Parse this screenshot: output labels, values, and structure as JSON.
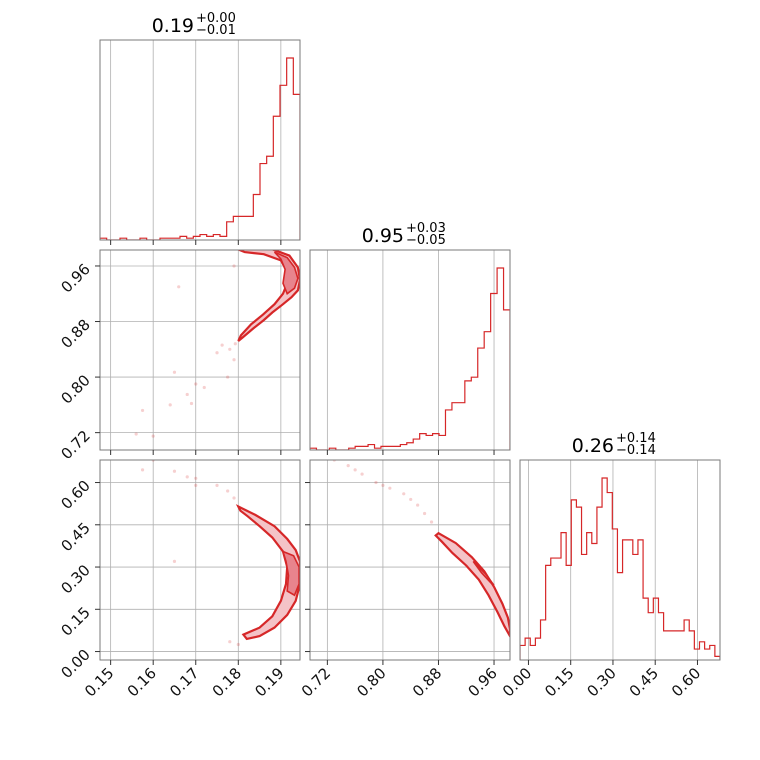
{
  "chart_data": {
    "type": "corner",
    "color": "#d62728",
    "parameters": [
      {
        "title": {
          "median": "0.19",
          "plus": "+0.00",
          "minus": "−0.01"
        },
        "range": [
          0.1475,
          0.1945
        ],
        "ticks": [
          0.15,
          0.16,
          0.17,
          0.18,
          0.19
        ],
        "tick_labels": [
          "0.15",
          "0.16",
          "0.17",
          "0.18",
          "0.19"
        ],
        "hist": [
          1,
          0,
          0,
          1,
          0,
          0,
          1,
          0,
          0,
          1,
          1,
          1,
          2,
          1,
          2,
          3,
          2,
          3,
          2,
          10,
          13,
          13,
          13,
          25,
          42,
          46,
          68,
          85,
          100,
          80
        ]
      },
      {
        "title": {
          "median": "0.95",
          "plus": "+0.03",
          "minus": "−0.05"
        },
        "range": [
          0.695,
          0.983
        ],
        "ticks": [
          0.72,
          0.8,
          0.88,
          0.96
        ],
        "tick_labels": [
          "0.72",
          "0.80",
          "0.88",
          "0.96"
        ],
        "hist": [
          1,
          0,
          0,
          1,
          0,
          0,
          1,
          2,
          2,
          3,
          1,
          2,
          2,
          2,
          3,
          4,
          6,
          9,
          8,
          9,
          8,
          22,
          26,
          26,
          38,
          40,
          56,
          65,
          86,
          100,
          77
        ]
      },
      {
        "title": {
          "median": "0.26",
          "plus": "+0.14",
          "minus": "−0.14"
        },
        "range": [
          -0.03,
          0.68
        ],
        "ticks": [
          0.0,
          0.15,
          0.3,
          0.45,
          0.6
        ],
        "tick_labels": [
          "0.00",
          "0.15",
          "0.30",
          "0.45",
          "0.60"
        ],
        "hist": [
          8,
          12,
          8,
          12,
          22,
          52,
          56,
          56,
          70,
          52,
          88,
          84,
          58,
          70,
          64,
          84,
          100,
          92,
          72,
          48,
          66,
          66,
          58,
          66,
          34,
          26,
          34,
          26,
          16,
          16,
          16,
          16,
          22,
          16,
          6,
          10,
          6,
          8,
          2
        ]
      }
    ],
    "contours": {
      "1_0": [
        {
          "level": "outer",
          "points": [
            [
              0.1795,
              0.985
            ],
            [
              0.188,
              0.984
            ],
            [
              0.192,
              0.975
            ],
            [
              0.194,
              0.958
            ],
            [
              0.1945,
              0.94
            ],
            [
              0.194,
              0.925
            ],
            [
              0.1925,
              0.915
            ],
            [
              0.1905,
              0.905
            ],
            [
              0.188,
              0.893
            ],
            [
              0.186,
              0.882
            ],
            [
              0.1835,
              0.87
            ],
            [
              0.181,
              0.857
            ],
            [
              0.18,
              0.852
            ],
            [
              0.1806,
              0.86
            ],
            [
              0.183,
              0.876
            ],
            [
              0.1858,
              0.89
            ],
            [
              0.1885,
              0.905
            ],
            [
              0.1905,
              0.92
            ],
            [
              0.1915,
              0.935
            ],
            [
              0.1915,
              0.952
            ],
            [
              0.19,
              0.968
            ],
            [
              0.186,
              0.977
            ],
            [
              0.1815,
              0.98
            ]
          ]
        },
        {
          "level": "inner",
          "points": [
            [
              0.1885,
              0.98
            ],
            [
              0.1915,
              0.972
            ],
            [
              0.1932,
              0.958
            ],
            [
              0.194,
              0.942
            ],
            [
              0.1932,
              0.928
            ],
            [
              0.1915,
              0.92
            ],
            [
              0.1905,
              0.935
            ],
            [
              0.191,
              0.955
            ],
            [
              0.19,
              0.97
            ]
          ]
        }
      ],
      "2_0": [
        {
          "level": "outer",
          "points": [
            [
              0.18,
              0.515
            ],
            [
              0.184,
              0.485
            ],
            [
              0.1885,
              0.445
            ],
            [
              0.1915,
              0.4
            ],
            [
              0.1935,
              0.36
            ],
            [
              0.1945,
              0.32
            ],
            [
              0.1945,
              0.24
            ],
            [
              0.1935,
              0.18
            ],
            [
              0.1915,
              0.13
            ],
            [
              0.1885,
              0.085
            ],
            [
              0.185,
              0.055
            ],
            [
              0.182,
              0.045
            ],
            [
              0.1812,
              0.06
            ],
            [
              0.185,
              0.085
            ],
            [
              0.188,
              0.125
            ],
            [
              0.19,
              0.18
            ],
            [
              0.1912,
              0.24
            ],
            [
              0.1915,
              0.3
            ],
            [
              0.1905,
              0.355
            ],
            [
              0.188,
              0.405
            ],
            [
              0.185,
              0.445
            ],
            [
              0.1822,
              0.48
            ],
            [
              0.1805,
              0.5
            ]
          ]
        },
        {
          "level": "inner",
          "points": [
            [
              0.1905,
              0.355
            ],
            [
              0.193,
              0.34
            ],
            [
              0.1943,
              0.3
            ],
            [
              0.1943,
              0.24
            ],
            [
              0.1932,
              0.2
            ],
            [
              0.1915,
              0.215
            ],
            [
              0.1918,
              0.27
            ],
            [
              0.1912,
              0.32
            ]
          ]
        }
      ],
      "2_1": [
        {
          "level": "outer",
          "points": [
            [
              0.88,
              0.42
            ],
            [
              0.905,
              0.385
            ],
            [
              0.928,
              0.335
            ],
            [
              0.946,
              0.285
            ],
            [
              0.96,
              0.23
            ],
            [
              0.972,
              0.17
            ],
            [
              0.98,
              0.12
            ],
            [
              0.983,
              0.08
            ],
            [
              0.983,
              0.055
            ],
            [
              0.975,
              0.09
            ],
            [
              0.965,
              0.14
            ],
            [
              0.952,
              0.2
            ],
            [
              0.938,
              0.255
            ],
            [
              0.92,
              0.305
            ],
            [
              0.9,
              0.35
            ],
            [
              0.885,
              0.39
            ],
            [
              0.876,
              0.412
            ]
          ]
        },
        {
          "level": "inner",
          "points": [
            [
              0.93,
              0.32
            ],
            [
              0.948,
              0.275
            ],
            [
              0.96,
              0.235
            ],
            [
              0.955,
              0.245
            ],
            [
              0.942,
              0.28
            ]
          ]
        }
      ]
    },
    "scatter": {
      "1_0": [
        [
          0.1575,
          0.752
        ],
        [
          0.156,
          0.718
        ],
        [
          0.16,
          0.715
        ],
        [
          0.165,
          0.807
        ],
        [
          0.168,
          0.775
        ],
        [
          0.169,
          0.762
        ],
        [
          0.17,
          0.79
        ],
        [
          0.172,
          0.785
        ],
        [
          0.164,
          0.76
        ],
        [
          0.175,
          0.835
        ],
        [
          0.178,
          0.84
        ],
        [
          0.179,
          0.825
        ],
        [
          0.1775,
          0.8
        ],
        [
          0.166,
          0.93
        ],
        [
          0.179,
          0.96
        ],
        [
          0.1762,
          0.846
        ],
        [
          0.1793,
          0.848
        ]
      ],
      "2_0": [
        [
          0.1575,
          0.645
        ],
        [
          0.16,
          0.68
        ],
        [
          0.165,
          0.64
        ],
        [
          0.168,
          0.62
        ],
        [
          0.17,
          0.615
        ],
        [
          0.175,
          0.59
        ],
        [
          0.1775,
          0.57
        ],
        [
          0.179,
          0.545
        ],
        [
          0.165,
          0.32
        ],
        [
          0.17,
          0.59
        ],
        [
          0.178,
          0.035
        ],
        [
          0.18,
          0.025
        ]
      ],
      "2_1": [
        [
          0.73,
          0.68
        ],
        [
          0.75,
          0.66
        ],
        [
          0.77,
          0.63
        ],
        [
          0.79,
          0.6
        ],
        [
          0.81,
          0.58
        ],
        [
          0.83,
          0.56
        ],
        [
          0.85,
          0.52
        ],
        [
          0.86,
          0.49
        ],
        [
          0.87,
          0.46
        ],
        [
          0.76,
          0.645
        ],
        [
          0.8,
          0.59
        ],
        [
          0.84,
          0.54
        ]
      ]
    }
  }
}
